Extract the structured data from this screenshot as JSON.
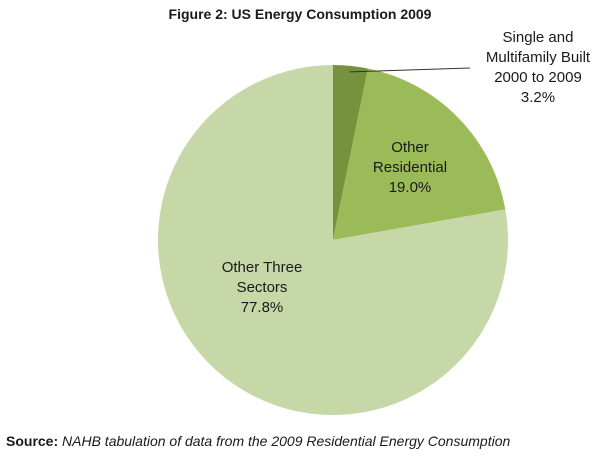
{
  "title": "Figure 2: US Energy Consumption 2009",
  "source": {
    "label": "Source:",
    "text": "NAHB tabulation of data from the 2009 Residential Energy Consumption"
  },
  "chart_data": {
    "type": "pie",
    "title": "Figure 2: US Energy Consumption 2009",
    "slices": [
      {
        "name": "Single and Multifamily Built 2000 to 2009",
        "label_lines": [
          "Single and",
          "Multifamily Built",
          "2000 to 2009",
          "3.2%"
        ],
        "value": 3.2,
        "color": "#76923c",
        "label_outside": true
      },
      {
        "name": "Other Residential",
        "label_lines": [
          "Other",
          "Residential",
          "19.0%"
        ],
        "value": 19.0,
        "color": "#9bbb59",
        "label_outside": false
      },
      {
        "name": "Other Three Sectors",
        "label_lines": [
          "Other Three",
          "Sectors",
          "77.8%"
        ],
        "value": 77.8,
        "color": "#c7d8a8",
        "label_outside": false
      }
    ]
  }
}
